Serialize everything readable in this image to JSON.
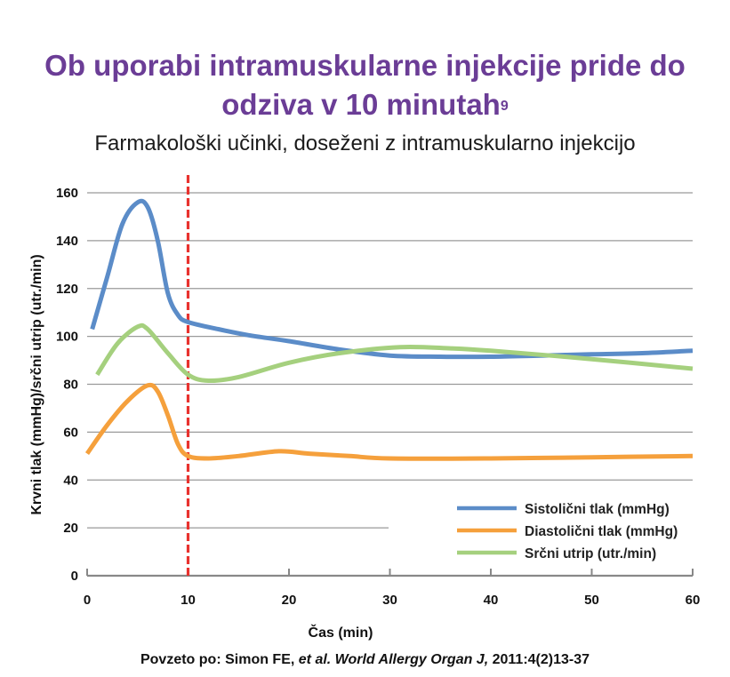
{
  "header": {
    "title_line1": "Ob uporabi intramuskularne injekcije pride do",
    "title_line2": "odziva v 10 minutah",
    "title_sup": "9",
    "subtitle": "Farmakološki učinki, doseženi z intramuskularno injekcijo"
  },
  "citation": {
    "prefix": "Povzeto po: Simon FE, ",
    "italic": "et al. World Allergy Organ J,",
    "suffix": " 2011:4(2)13-37"
  },
  "chart_data": {
    "type": "line",
    "title": "Farmakološki učinki, doseženi z intramuskularno injekcijo",
    "xlabel": "Čas (min)",
    "ylabel": "Krvni tlak (mmHg)/srčni utrip (utr./min)",
    "xlim": [
      0,
      60
    ],
    "ylim": [
      0,
      160
    ],
    "xticks": [
      0,
      10,
      20,
      30,
      40,
      50,
      60
    ],
    "yticks": [
      0,
      20,
      40,
      60,
      80,
      100,
      120,
      140,
      160
    ],
    "grid": "horizontal",
    "legend_position": "bottom-right",
    "annotation": {
      "type": "vertical-dashed-line",
      "x": 10,
      "color": "#e8322e"
    },
    "series": [
      {
        "name": "Sistolični tlak (mmHg)",
        "color": "#5b8cc8",
        "points": [
          [
            0.5,
            103
          ],
          [
            2,
            125
          ],
          [
            3.5,
            147
          ],
          [
            5,
            156
          ],
          [
            6,
            154
          ],
          [
            7,
            140
          ],
          [
            8,
            118
          ],
          [
            9,
            109
          ],
          [
            10,
            106
          ],
          [
            13,
            103
          ],
          [
            16,
            100.5
          ],
          [
            20,
            98
          ],
          [
            25,
            94.5
          ],
          [
            30,
            92
          ],
          [
            35,
            91.5
          ],
          [
            40,
            91.5
          ],
          [
            45,
            92
          ],
          [
            50,
            92.5
          ],
          [
            55,
            93
          ],
          [
            60,
            94
          ]
        ]
      },
      {
        "name": "Diastolični tlak (mmHg)",
        "color": "#f5a03c",
        "points": [
          [
            0,
            51
          ],
          [
            2,
            63
          ],
          [
            4,
            73
          ],
          [
            6,
            79.5
          ],
          [
            7,
            77
          ],
          [
            8,
            67
          ],
          [
            9,
            55
          ],
          [
            10,
            50
          ],
          [
            12,
            49
          ],
          [
            15,
            50
          ],
          [
            19,
            52
          ],
          [
            22,
            51
          ],
          [
            26,
            50
          ],
          [
            30,
            49
          ],
          [
            40,
            49
          ],
          [
            50,
            49.5
          ],
          [
            60,
            50
          ]
        ]
      },
      {
        "name": "Srčni utrip (utr./min)",
        "color": "#a5d07e",
        "points": [
          [
            1,
            84
          ],
          [
            3,
            97
          ],
          [
            5,
            104
          ],
          [
            6,
            103
          ],
          [
            8,
            93
          ],
          [
            10,
            84
          ],
          [
            12,
            81.5
          ],
          [
            15,
            83
          ],
          [
            20,
            89
          ],
          [
            25,
            93
          ],
          [
            31,
            95.5
          ],
          [
            36,
            95
          ],
          [
            40,
            94
          ],
          [
            50,
            90.5
          ],
          [
            60,
            86.5
          ]
        ]
      }
    ]
  }
}
